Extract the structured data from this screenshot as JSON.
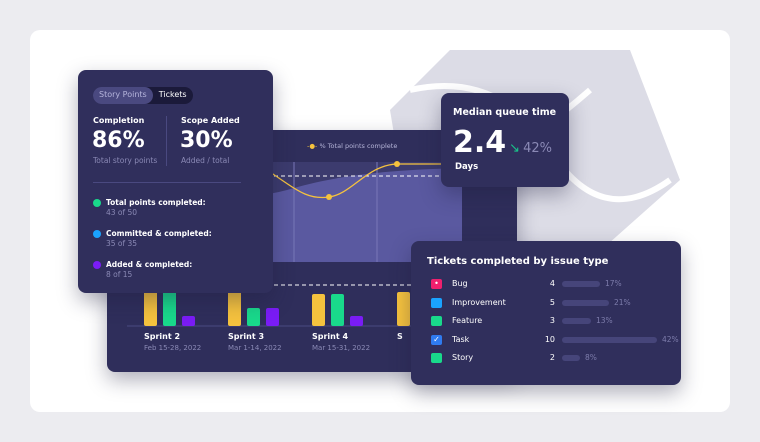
{
  "segmented_control": {
    "options": [
      "Story Points",
      "Tickets"
    ],
    "selected": "Tickets"
  },
  "summary": {
    "completion": {
      "label": "Completion",
      "value": "86%",
      "caption": "Total story points"
    },
    "scope_added": {
      "label": "Scope Added",
      "value": "30%",
      "caption": "Added / total"
    },
    "stats": [
      {
        "label": "Total points completed:",
        "value": "43 of 50",
        "color": "#19d98b"
      },
      {
        "label": "Committed & completed:",
        "value": "35 of 35",
        "color": "#1aa3ff"
      },
      {
        "label": "Added & completed:",
        "value": "8 of 15",
        "color": "#7a1cf5"
      }
    ]
  },
  "median": {
    "title": "Median queue time",
    "value": "2.4",
    "unit": "Days",
    "change": "42%",
    "trend": "down",
    "trend_color": "#19c38a"
  },
  "tickets": {
    "title": "Tickets completed by issue type",
    "rows": [
      {
        "type": "Bug",
        "count": "4",
        "pct": "17%",
        "fraction": 0.17,
        "color": "#f0206e",
        "icon": "bug-icon"
      },
      {
        "type": "Improvement",
        "count": "5",
        "pct": "21%",
        "fraction": 0.21,
        "color": "#1aa3ff",
        "icon": "improvement-icon"
      },
      {
        "type": "Feature",
        "count": "3",
        "pct": "13%",
        "fraction": 0.13,
        "color": "#19d98b",
        "icon": "feature-icon"
      },
      {
        "type": "Task",
        "count": "10",
        "pct": "42%",
        "fraction": 0.42,
        "color": "#2f7bf0",
        "icon": "task-check-icon"
      },
      {
        "type": "Story",
        "count": "2",
        "pct": "8%",
        "fraction": 0.08,
        "color": "#19d98b",
        "icon": "story-icon"
      }
    ]
  },
  "chart": {
    "legend": "% Total points complete",
    "line_color": "#f5c23e",
    "sprints": [
      {
        "name": "Sprint 2",
        "dates": "Feb 15-28, 2022"
      },
      {
        "name": "Sprint 3",
        "dates": "Mar 1-14, 2022"
      },
      {
        "name": "Sprint 4",
        "dates": "Mar 15-31, 2022"
      },
      {
        "name": "S",
        "dates": ""
      }
    ],
    "bar_colors": [
      "#f5c23e",
      "#19d98b",
      "#7a1cf5"
    ]
  }
}
